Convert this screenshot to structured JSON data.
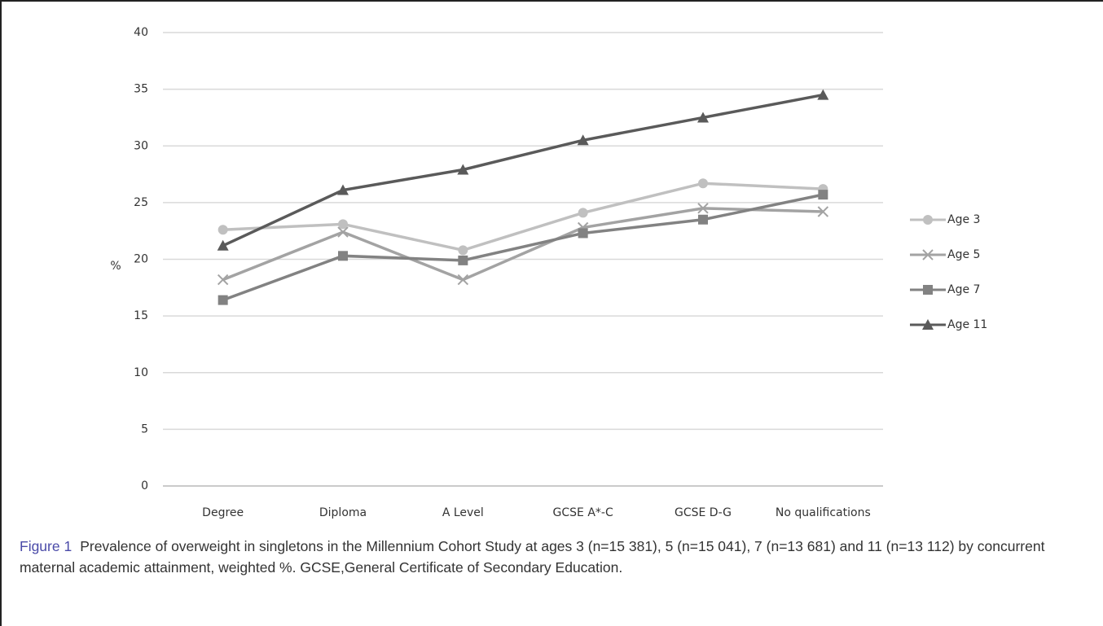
{
  "chart_data": {
    "type": "line",
    "y_label": "%",
    "categories": [
      "Degree",
      "Diploma",
      "A Level",
      "GCSE A*-C",
      "GCSE D-G",
      "No qualifications"
    ],
    "series": [
      {
        "name": "Age 3",
        "color": "#c0c0c0",
        "marker": "circle",
        "values": [
          22.6,
          23.1,
          20.8,
          24.1,
          26.7,
          26.2
        ]
      },
      {
        "name": "Age 5",
        "color": "#a3a3a3",
        "marker": "cross",
        "values": [
          18.2,
          22.4,
          18.2,
          22.8,
          24.5,
          24.2
        ]
      },
      {
        "name": "Age 7",
        "color": "#828282",
        "marker": "square",
        "values": [
          16.4,
          20.3,
          19.9,
          22.3,
          23.5,
          25.7
        ]
      },
      {
        "name": "Age 11",
        "color": "#5a5a5a",
        "marker": "triangle",
        "values": [
          21.2,
          26.1,
          27.9,
          30.5,
          32.5,
          34.5
        ]
      }
    ],
    "ylim": [
      0,
      40
    ],
    "yticks": [
      0,
      5,
      10,
      15,
      20,
      25,
      30,
      35,
      40
    ],
    "grid": true,
    "legend": "right",
    "figure_label": "Figure 1",
    "caption": "Prevalence of overweight in singletons in the Millennium Cohort Study at ages 3 (n=15 381), 5 (n=15 041), 7 (n=13 681) and 11 (n=13 112) by concurrent maternal academic attainment, weighted %. GCSE,General Certificate of Secondary Education."
  }
}
